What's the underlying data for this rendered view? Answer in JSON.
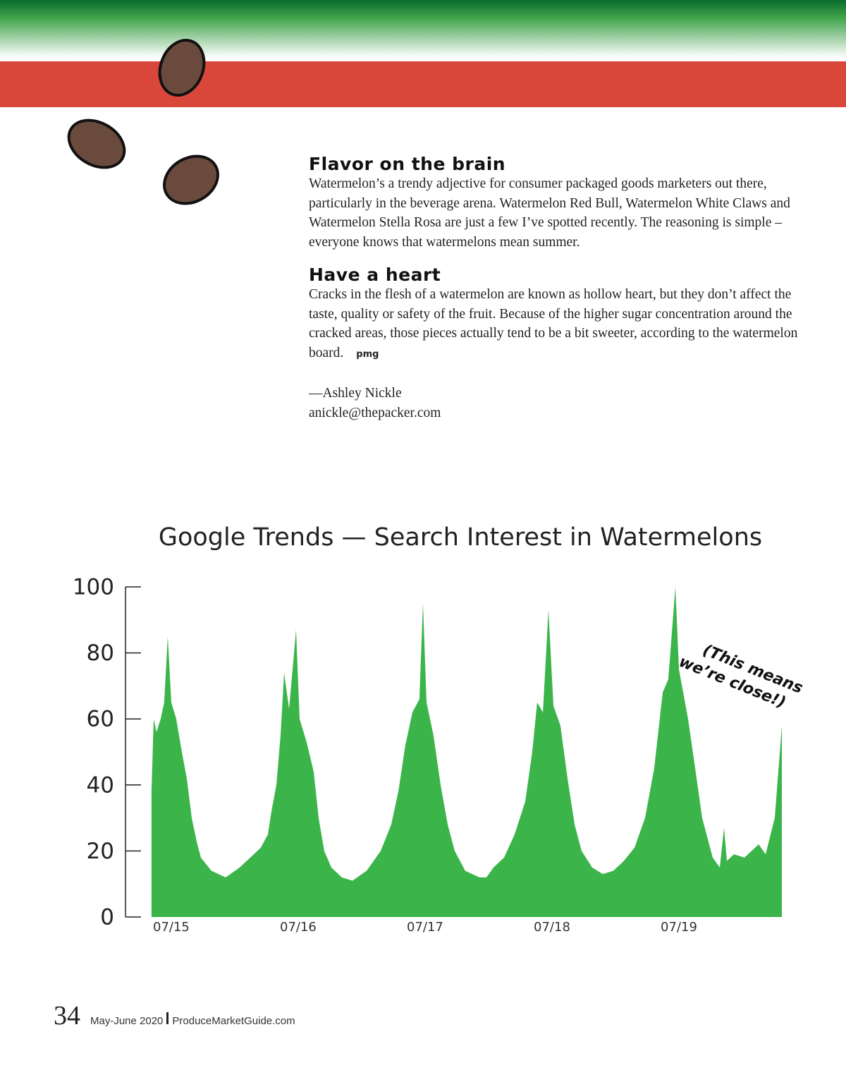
{
  "article": {
    "sections": [
      {
        "heading": "Flavor on the brain",
        "body": "Watermelon’s a trendy adjective for consumer packaged goods marketers out there, particularly in the beverage arena. Watermelon Red Bull, Watermelon White Claws and Watermelon Stella Rosa are just a few I’ve spotted recently. The reasoning is simple – everyone knows that watermelons mean summer."
      },
      {
        "heading": "Have a heart",
        "body": "Cracks in the flesh of a watermelon are known as hollow heart, but they don’t affect the taste, quality or safety of the fruit. Because of the higher sugar concentration around the cracked areas, those pieces actually tend to be a bit sweeter, according to the watermelon board.",
        "signoff": "pmg"
      }
    ],
    "author": "—Ashley Nickle",
    "email": "anickle@thepacker.com"
  },
  "chart_data": {
    "type": "area",
    "title": "Google Trends — Search Interest in Watermelons",
    "color": "#3bb54a",
    "x": [
      2015.372,
      2015.389,
      2015.411,
      2015.444,
      2015.472,
      2015.5,
      2015.528,
      2015.567,
      2015.611,
      2015.65,
      2015.689,
      2015.733,
      2015.761,
      2015.844,
      2015.956,
      2016.067,
      2016.178,
      2016.233,
      2016.289,
      2016.317,
      2016.356,
      2016.389,
      2016.417,
      2016.456,
      2016.511,
      2016.539,
      2016.594,
      2016.65,
      2016.689,
      2016.733,
      2016.789,
      2016.872,
      2016.956,
      2017.067,
      2017.178,
      2017.261,
      2017.317,
      2017.372,
      2017.428,
      2017.483,
      2017.511,
      2017.539,
      2017.594,
      2017.65,
      2017.706,
      2017.761,
      2017.844,
      2017.956,
      2018.011,
      2018.067,
      2018.15,
      2018.233,
      2018.317,
      2018.372,
      2018.411,
      2018.456,
      2018.5,
      2018.539,
      2018.594,
      2018.65,
      2018.706,
      2018.761,
      2018.844,
      2018.928,
      2019.011,
      2019.094,
      2019.178,
      2019.261,
      2019.333,
      2019.4,
      2019.444,
      2019.5,
      2019.528,
      2019.6,
      2019.656,
      2019.711,
      2019.794,
      2019.85,
      2019.883,
      2019.906,
      2019.961,
      2020.044,
      2020.1,
      2020.156,
      2020.211,
      2020.25,
      2020.283,
      2020.339
    ],
    "values": [
      38,
      60,
      56,
      60,
      65,
      85,
      65,
      60,
      50,
      42,
      30,
      22,
      18,
      14,
      12,
      15,
      19,
      21,
      25,
      32,
      40,
      55,
      74,
      63,
      87,
      60,
      53,
      44,
      30,
      20,
      15,
      12,
      11,
      14,
      20,
      28,
      38,
      52,
      62,
      66,
      95,
      65,
      55,
      40,
      28,
      20,
      14,
      12,
      12,
      15,
      18,
      25,
      35,
      50,
      65,
      62,
      93,
      64,
      58,
      42,
      28,
      20,
      15,
      13,
      14,
      17,
      21,
      30,
      45,
      68,
      72,
      100,
      75,
      60,
      45,
      30,
      18,
      15,
      27,
      17,
      19,
      18,
      20,
      22,
      19,
      25,
      30,
      58
    ],
    "xlim": [
      2015.167,
      2020.4
    ],
    "xticks": [
      {
        "value": 2015.5,
        "label": "07/15"
      },
      {
        "value": 2016.5,
        "label": "07/16"
      },
      {
        "value": 2017.5,
        "label": "07/17"
      },
      {
        "value": 2018.5,
        "label": "07/18"
      },
      {
        "value": 2019.5,
        "label": "07/19"
      }
    ],
    "ylim": [
      0,
      100
    ],
    "yticks": [
      0,
      20,
      40,
      60,
      80,
      100
    ],
    "annotations": [
      "(This means",
      "we’re close!)"
    ]
  },
  "footer": {
    "page": "34",
    "issue": "May-June 2020",
    "site": "ProduceMarketGuide.com"
  }
}
